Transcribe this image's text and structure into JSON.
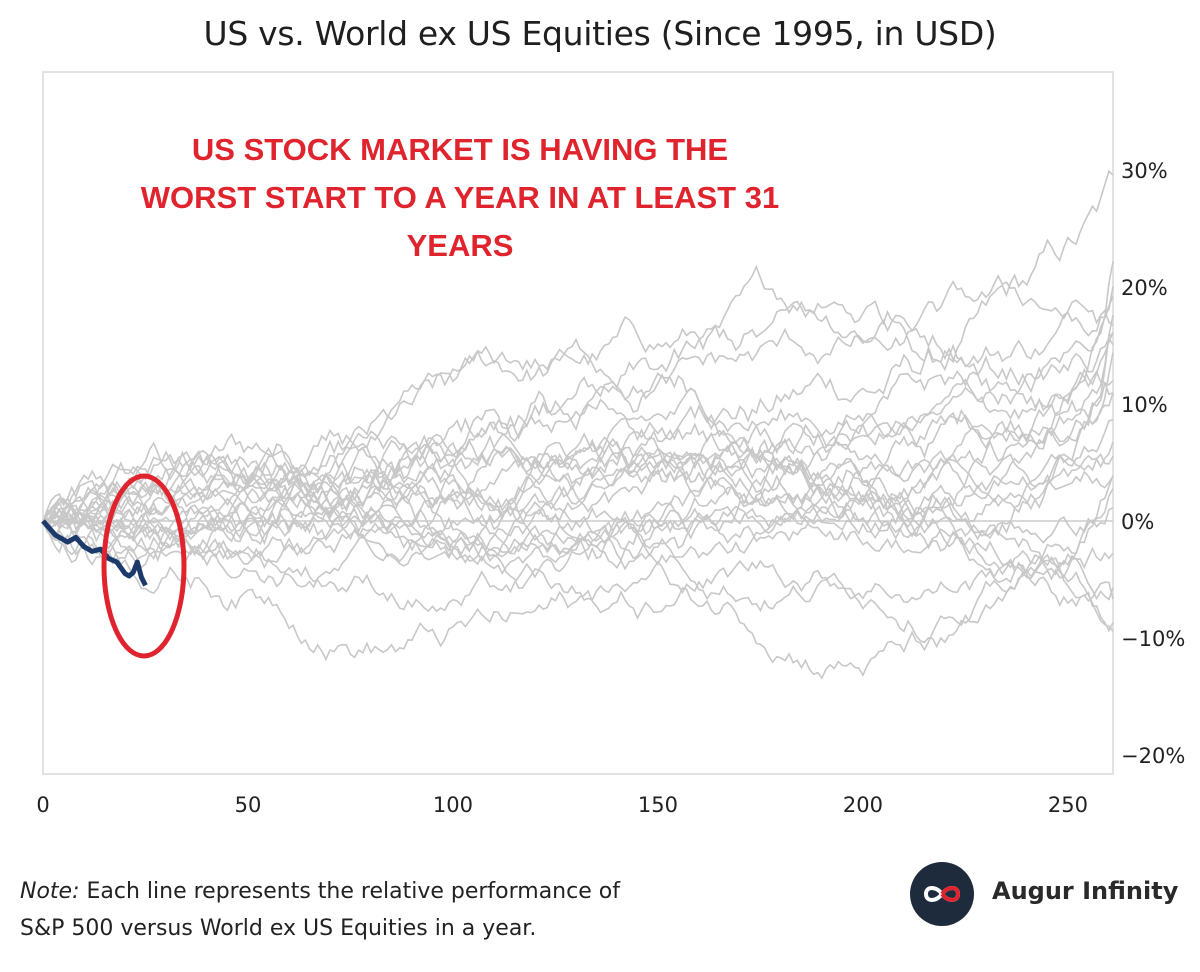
{
  "title": "US vs. World ex US Equities (Since 1995, in USD)",
  "annotation": [
    "US STOCK MARKET IS HAVING THE",
    "WORST START TO A YEAR IN AT LEAST 31",
    "YEARS"
  ],
  "note": {
    "label": "Note:",
    "text": "Each line represents the relative performance of",
    "text2": "S&P 500 versus World ex US Equities in a year."
  },
  "brand": {
    "name": "Augur Infinity",
    "logo_icon": "infinity-icon"
  },
  "colors": {
    "background_lines": "#c8c8c8",
    "highlight": "#1b3a6b",
    "annotation": "#e0242e",
    "zero_line": "#d8d8d8"
  },
  "chart_data": {
    "type": "line",
    "xlim": [
      0,
      261
    ],
    "ylim": [
      -21,
      36
    ],
    "x_ticks": [
      "0",
      "50",
      "100",
      "150",
      "200",
      "250"
    ],
    "x_tick_values": [
      0,
      50,
      100,
      150,
      200,
      250
    ],
    "y_ticks": [
      "30%",
      "20%",
      "10%",
      "0%",
      "−10%",
      "−20%"
    ],
    "y_tick_values": [
      30,
      20,
      10,
      0,
      -10,
      -20
    ],
    "y_axis_position": "right",
    "grid": false,
    "highlight_series": {
      "x": [
        0,
        3,
        6,
        8,
        10,
        12,
        14,
        16,
        18,
        20,
        21,
        22,
        23,
        24,
        25
      ],
      "y": [
        0,
        -1.2,
        -1.8,
        -1.4,
        -2.2,
        -2.6,
        -2.4,
        -3.2,
        -3.5,
        -4.5,
        -4.7,
        -4.4,
        -3.5,
        -4.8,
        -5.5
      ]
    },
    "background_series": [
      {
        "end": 31,
        "vol": 1.4
      },
      {
        "end": 28,
        "vol": 1.3
      },
      {
        "end": 25,
        "vol": 1.2
      },
      {
        "end": 23,
        "vol": 1.0
      },
      {
        "end": 21,
        "vol": 1.2
      },
      {
        "end": 20,
        "vol": 1.1
      },
      {
        "end": 18,
        "vol": 1.3
      },
      {
        "end": 17,
        "vol": 1.0
      },
      {
        "end": 16,
        "vol": 1.2
      },
      {
        "end": 15,
        "vol": 1.1
      },
      {
        "end": 14,
        "vol": 1.3
      },
      {
        "end": 12,
        "vol": 1.1
      },
      {
        "end": 11,
        "vol": 1.0
      },
      {
        "end": 10,
        "vol": 1.2
      },
      {
        "end": 9,
        "vol": 1.0
      },
      {
        "end": 8,
        "vol": 1.1
      },
      {
        "end": 7,
        "vol": 1.0
      },
      {
        "end": 5,
        "vol": 0.9
      },
      {
        "end": 4,
        "vol": 1.0
      },
      {
        "end": 2,
        "vol": 0.9
      },
      {
        "end": -3,
        "vol": 1.0
      },
      {
        "end": -6,
        "vol": 1.1
      },
      {
        "end": -8,
        "vol": 1.0
      },
      {
        "end": -9,
        "vol": 1.0
      },
      {
        "end": -10,
        "vol": 1.2
      }
    ]
  }
}
